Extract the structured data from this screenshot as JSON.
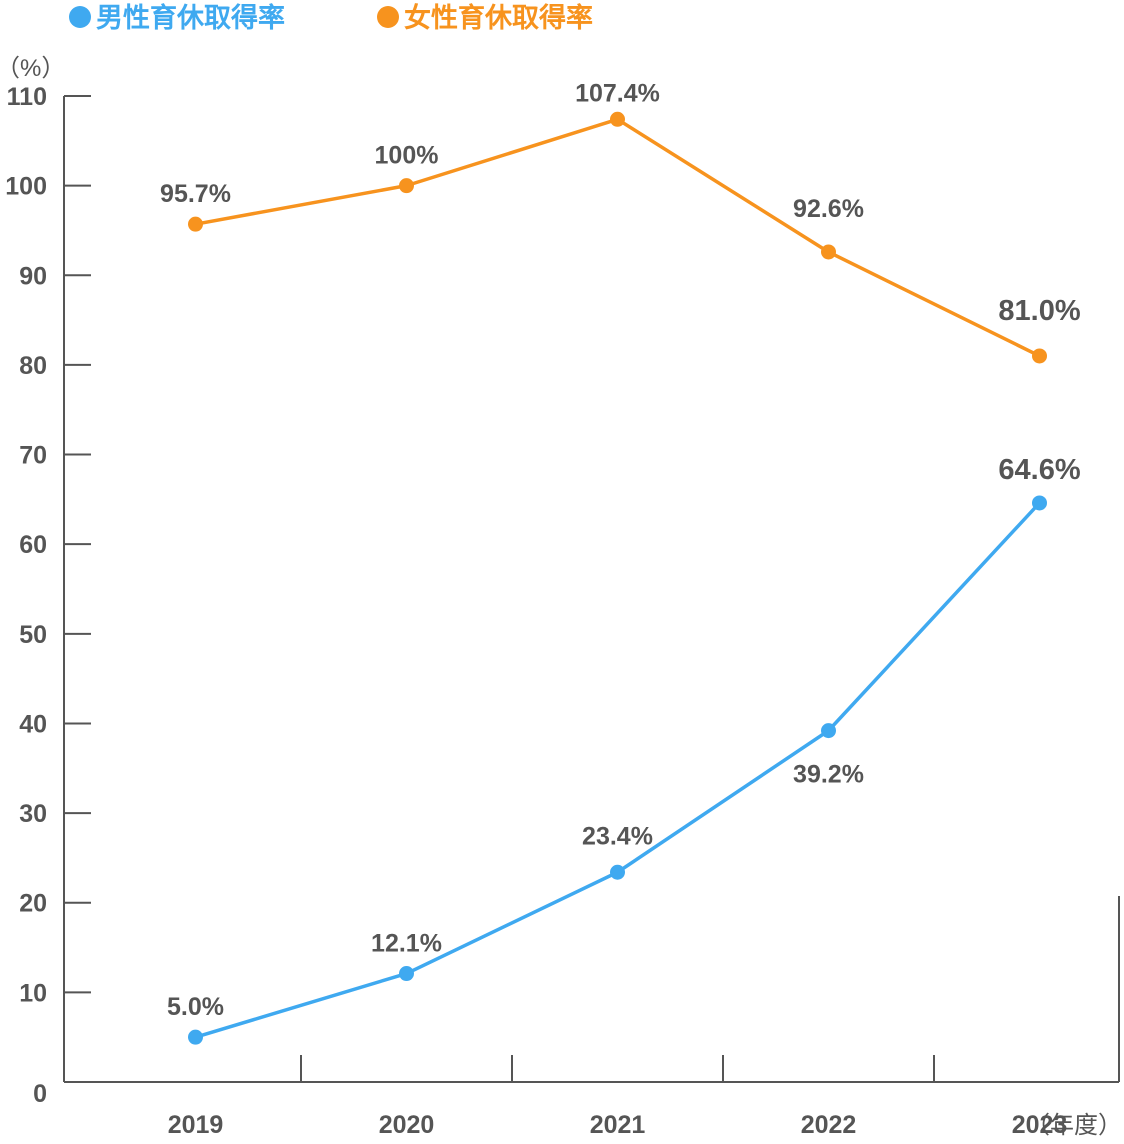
{
  "chart_data": {
    "type": "line",
    "categories": [
      "2019",
      "2020",
      "2021",
      "2022",
      "2023"
    ],
    "x_unit_label": "（年度）",
    "y_unit_label": "（%）",
    "ylim": [
      0,
      110
    ],
    "yticks": [
      0,
      10,
      20,
      30,
      40,
      50,
      60,
      70,
      80,
      90,
      100,
      110
    ],
    "grid": false,
    "legend_position": "top-left",
    "series": [
      {
        "name": "男性育休取得率",
        "color": "#3fa9f0",
        "values": [
          5.0,
          12.1,
          23.4,
          39.2,
          64.6
        ],
        "labels": [
          "5.0%",
          "12.1%",
          "23.4%",
          "39.2%",
          "64.6%"
        ]
      },
      {
        "name": "女性育休取得率",
        "color": "#f7931e",
        "values": [
          95.7,
          100,
          107.4,
          92.6,
          81.0
        ],
        "labels": [
          "95.7%",
          "100%",
          "107.4%",
          "92.6%",
          "81.0%"
        ]
      }
    ]
  }
}
